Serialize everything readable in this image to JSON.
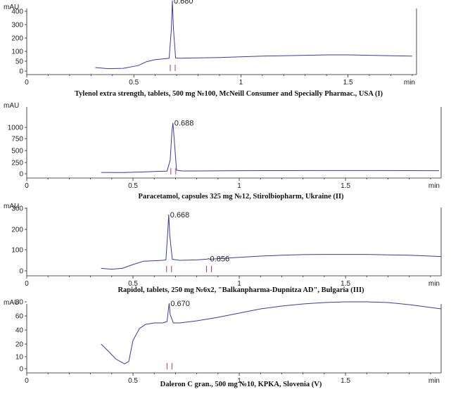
{
  "chart_data": [
    {
      "type": "line",
      "caption": "Tylenol extra strength, tablets, 500 mg №100, McNeill Consumer and Specially Pharmac., USA (I)",
      "ylabel": "mAU",
      "xunit": "min",
      "xlim": [
        0,
        1.82
      ],
      "ylim": [
        0,
        500
      ],
      "xticks": [
        0,
        0.5,
        1,
        1.5
      ],
      "xtick_labels": [
        "0",
        "0.5",
        "1",
        "1.5"
      ],
      "yticks": [
        0,
        50,
        100,
        200,
        300,
        400
      ],
      "ytick_labels": [
        "0",
        "50",
        "100",
        "200",
        "300",
        "400"
      ],
      "peaks": [
        {
          "label": "0.680",
          "x": 0.68,
          "y": 480
        }
      ],
      "series": [
        {
          "x": [
            0.32,
            0.38,
            0.45,
            0.52,
            0.56,
            0.6,
            0.64,
            0.665,
            0.675,
            0.68,
            0.685,
            0.695,
            0.72,
            0.8,
            0.9,
            1.0,
            1.1,
            1.2,
            1.3,
            1.4,
            1.5,
            1.6,
            1.7,
            1.8
          ],
          "y": [
            18,
            12,
            14,
            28,
            48,
            58,
            62,
            65,
            260,
            480,
            270,
            66,
            65,
            67,
            69,
            72,
            76,
            78,
            80,
            82,
            82,
            80,
            78,
            76
          ]
        }
      ]
    },
    {
      "type": "line",
      "caption": "Paracetamol, capsules 325 mg №12, Stirolbiopharm, Ukraine (II)",
      "ylabel": "mAU",
      "xunit": "min",
      "xlim": [
        0,
        1.95
      ],
      "ylim": [
        0,
        1200
      ],
      "xticks": [
        0,
        0.5,
        1,
        1.5
      ],
      "xtick_labels": [
        "0",
        "0.5",
        "1",
        "1.5"
      ],
      "yticks": [
        0,
        250,
        500,
        750,
        1000
      ],
      "ytick_labels": [
        "0",
        "250",
        "500",
        "750",
        "1000"
      ],
      "peaks": [
        {
          "label": "0.688",
          "x": 0.688,
          "y": 1100
        }
      ],
      "series": [
        {
          "x": [
            0.35,
            0.45,
            0.55,
            0.62,
            0.66,
            0.675,
            0.683,
            0.688,
            0.693,
            0.705,
            0.73,
            0.8,
            1.0,
            1.2,
            1.4,
            1.6,
            1.8,
            1.94
          ],
          "y": [
            30,
            28,
            40,
            55,
            60,
            300,
            900,
            1100,
            800,
            80,
            62,
            63,
            68,
            70,
            72,
            72,
            70,
            68
          ]
        }
      ]
    },
    {
      "type": "line",
      "caption": "Rapidol, tablets, 250 mg №6x2, \"Balkanpharma-Dupnitza AD\", Bulgaria (III)",
      "ylabel": "mAU",
      "xunit": "min",
      "xlim": [
        0,
        1.95
      ],
      "ylim": [
        0,
        330
      ],
      "xticks": [
        0,
        0.5,
        1,
        1.5
      ],
      "xtick_labels": [
        "0",
        "0.5",
        "1",
        "1.5"
      ],
      "yticks": [
        0,
        100,
        200,
        300
      ],
      "ytick_labels": [
        "0",
        "100",
        "200",
        "300"
      ],
      "peaks": [
        {
          "label": "0.668",
          "x": 0.668,
          "y": 270
        },
        {
          "label": "0.856",
          "x": 0.856,
          "y": 58
        }
      ],
      "series": [
        {
          "x": [
            0.35,
            0.4,
            0.45,
            0.5,
            0.55,
            0.6,
            0.64,
            0.655,
            0.663,
            0.668,
            0.673,
            0.685,
            0.72,
            0.8,
            0.85,
            0.856,
            0.862,
            0.9,
            1.0,
            1.1,
            1.2,
            1.3,
            1.4,
            1.5,
            1.6,
            1.7,
            1.8,
            1.9,
            1.95
          ],
          "y": [
            12,
            8,
            12,
            30,
            46,
            48,
            50,
            52,
            180,
            270,
            170,
            55,
            50,
            52,
            56,
            58,
            55,
            58,
            64,
            70,
            74,
            77,
            78,
            78,
            78,
            76,
            74,
            70,
            68
          ]
        }
      ]
    },
    {
      "type": "line",
      "caption": "Daleron C gran., 500 mg №10, KPKA, Slovenia (V)",
      "ylabel": "mAU",
      "xunit": "min",
      "xlim": [
        0,
        1.95
      ],
      "ylim": [
        0,
        90
      ],
      "xticks": [
        0,
        0.5,
        1,
        1.5
      ],
      "xtick_labels": [
        "0",
        "0.5",
        "1",
        "1.5"
      ],
      "yticks": [
        0,
        10,
        20,
        40,
        60,
        80
      ],
      "ytick_labels": [
        "0",
        "10",
        "20",
        "40",
        "60",
        "80"
      ],
      "peaks": [
        {
          "label": "0.670",
          "x": 0.67,
          "y": 78
        }
      ],
      "series": [
        {
          "x": [
            0.35,
            0.38,
            0.42,
            0.46,
            0.48,
            0.5,
            0.53,
            0.56,
            0.6,
            0.64,
            0.66,
            0.665,
            0.67,
            0.675,
            0.69,
            0.72,
            0.8,
            0.9,
            1.0,
            1.1,
            1.2,
            1.3,
            1.4,
            1.5,
            1.6,
            1.7,
            1.8,
            1.9,
            1.95
          ],
          "y": [
            20,
            15,
            8,
            4,
            6,
            25,
            42,
            48,
            50,
            50,
            52,
            65,
            78,
            62,
            50,
            50,
            53,
            58,
            64,
            70,
            74,
            77,
            79,
            80,
            80,
            79,
            76,
            72,
            70
          ]
        }
      ]
    }
  ]
}
